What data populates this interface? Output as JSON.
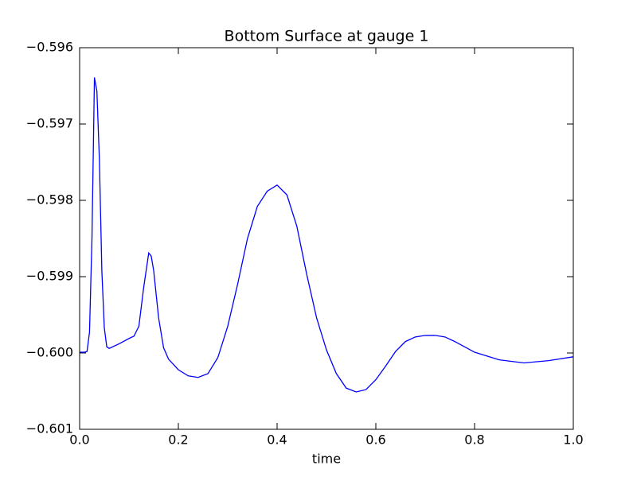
{
  "chart_data": {
    "type": "line",
    "title": "Bottom Surface at gauge 1",
    "x_label": "time",
    "x": [
      0,
      0.01,
      0.015,
      0.02,
      0.025,
      0.03,
      0.035,
      0.04,
      0.045,
      0.05,
      0.055,
      0.06,
      0.08,
      0.1,
      0.11,
      0.12,
      0.13,
      0.14,
      0.145,
      0.15,
      0.16,
      0.17,
      0.18,
      0.2,
      0.22,
      0.24,
      0.26,
      0.28,
      0.3,
      0.32,
      0.34,
      0.36,
      0.38,
      0.4,
      0.42,
      0.44,
      0.46,
      0.48,
      0.5,
      0.52,
      0.54,
      0.56,
      0.58,
      0.6,
      0.62,
      0.64,
      0.66,
      0.68,
      0.7,
      0.72,
      0.74,
      0.76,
      0.8,
      0.85,
      0.9,
      0.95,
      1.0
    ],
    "series": [
      {
        "name": "gauge 1",
        "color": "#0000ff",
        "values": [
          -0.59999,
          -0.59999,
          -0.59998,
          -0.59973,
          -0.5985,
          -0.59639,
          -0.59657,
          -0.59746,
          -0.59892,
          -0.59967,
          -0.59992,
          -0.59994,
          -0.59988,
          -0.59981,
          -0.59978,
          -0.59965,
          -0.59913,
          -0.59869,
          -0.59873,
          -0.59892,
          -0.59954,
          -0.59993,
          -0.60008,
          -0.60022,
          -0.6003,
          -0.60032,
          -0.60027,
          -0.60006,
          -0.59965,
          -0.5991,
          -0.5985,
          -0.59808,
          -0.59788,
          -0.5978,
          -0.59793,
          -0.59834,
          -0.59897,
          -0.59954,
          -0.59996,
          -0.60027,
          -0.60046,
          -0.60051,
          -0.60048,
          -0.60035,
          -0.60017,
          -0.59998,
          -0.59985,
          -0.59979,
          -0.59977,
          -0.59977,
          -0.59979,
          -0.59985,
          -0.59999,
          -0.60009,
          -0.60013,
          -0.6001,
          -0.60005
        ]
      }
    ],
    "xlim": [
      0,
      1
    ],
    "xticks": [
      {
        "value": 0,
        "label": "0.0"
      },
      0.2,
      0.4,
      0.6,
      0.8,
      {
        "value": 1,
        "label": "1.0"
      }
    ],
    "ylim": [
      -0.601,
      -0.596
    ],
    "yticks": [
      {
        "value": -0.601,
        "label": "−0.601"
      },
      {
        "value": -0.6,
        "label": "−0.600"
      },
      {
        "value": -0.599,
        "label": "−0.599"
      },
      {
        "value": -0.598,
        "label": "−0.598"
      },
      {
        "value": -0.597,
        "label": "−0.597"
      },
      {
        "value": -0.596,
        "label": "−0.596"
      }
    ],
    "grid": false
  }
}
